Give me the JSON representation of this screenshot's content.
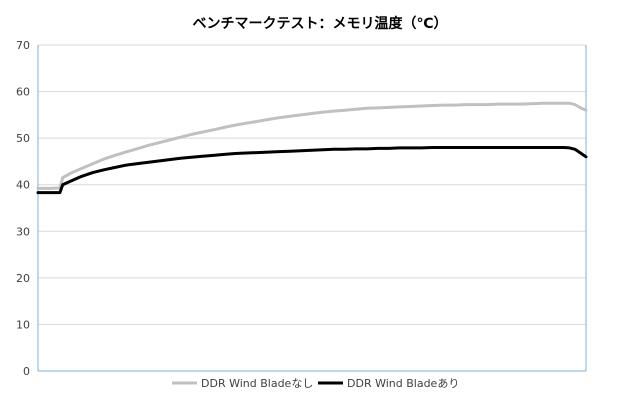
{
  "chart_data": {
    "type": "line",
    "title": "ベンチマークテスト：メモリ温度（℃）",
    "xlabel": "",
    "ylabel": "",
    "ylim": [
      0,
      70
    ],
    "yticks": [
      0,
      10,
      20,
      30,
      40,
      50,
      60,
      70
    ],
    "grid": true,
    "legend": "bottom",
    "x": [
      0,
      2,
      4,
      4.5,
      6,
      8,
      10,
      12,
      14,
      16,
      18,
      20,
      22,
      24,
      26,
      28,
      30,
      32,
      34,
      36,
      38,
      40,
      42,
      44,
      46,
      48,
      50,
      52,
      54,
      56,
      58,
      60,
      62,
      64,
      66,
      68,
      70,
      72,
      74,
      76,
      78,
      80,
      82,
      84,
      86,
      88,
      90,
      92,
      94,
      96,
      97,
      98,
      99,
      100
    ],
    "series": [
      {
        "name": "DDR Wind Bladeなし",
        "color": "#c0c0c0",
        "values": [
          39.2,
          39.2,
          39.3,
          41.5,
          42.5,
          43.5,
          44.5,
          45.5,
          46.3,
          47.0,
          47.7,
          48.4,
          49.0,
          49.6,
          50.2,
          50.8,
          51.3,
          51.8,
          52.3,
          52.8,
          53.2,
          53.6,
          54.0,
          54.4,
          54.7,
          55.0,
          55.3,
          55.6,
          55.8,
          56.0,
          56.2,
          56.4,
          56.5,
          56.6,
          56.7,
          56.8,
          56.9,
          57.0,
          57.1,
          57.1,
          57.2,
          57.2,
          57.2,
          57.3,
          57.3,
          57.3,
          57.4,
          57.5,
          57.5,
          57.5,
          57.5,
          57.2,
          56.5,
          56.0
        ]
      },
      {
        "name": "DDR Wind Bladeあり",
        "color": "#000000",
        "values": [
          38.3,
          38.3,
          38.3,
          40.0,
          40.8,
          41.8,
          42.6,
          43.2,
          43.7,
          44.2,
          44.5,
          44.8,
          45.1,
          45.4,
          45.7,
          45.9,
          46.1,
          46.3,
          46.5,
          46.7,
          46.8,
          46.9,
          47.0,
          47.1,
          47.2,
          47.3,
          47.4,
          47.5,
          47.6,
          47.6,
          47.7,
          47.7,
          47.8,
          47.8,
          47.9,
          47.9,
          47.9,
          48.0,
          48.0,
          48.0,
          48.0,
          48.0,
          48.0,
          48.0,
          48.0,
          48.0,
          48.0,
          48.0,
          48.0,
          48.0,
          47.9,
          47.6,
          46.8,
          46.0
        ]
      }
    ]
  }
}
